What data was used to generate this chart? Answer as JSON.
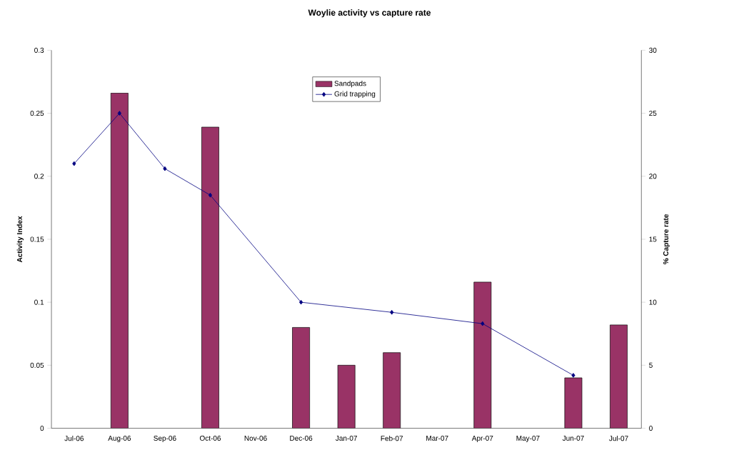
{
  "chart_data": {
    "type": "bar",
    "title": "Woylie activity vs capture rate",
    "ylabel": "Activity Index",
    "y2label": "% Capture rate",
    "categories": [
      "Jul-06",
      "Aug-06",
      "Sep-06",
      "Oct-06",
      "Nov-06",
      "Dec-06",
      "Jan-07",
      "Feb-07",
      "Mar-07",
      "Apr-07",
      "May-07",
      "Jun-07",
      "Jul-07"
    ],
    "series": [
      {
        "name": "Sandpads",
        "color": "#993366",
        "values": [
          null,
          0.266,
          null,
          0.239,
          null,
          0.08,
          0.05,
          0.06,
          null,
          0.116,
          null,
          0.04,
          0.082
        ]
      },
      {
        "name": "Grid trapping",
        "type": "line",
        "axis": "y2",
        "color": "#000080",
        "marker": "diamond",
        "line_style": "solid",
        "values": [
          21,
          25,
          20.6,
          18.5,
          null,
          10,
          null,
          9.2,
          null,
          8.3,
          null,
          4.2,
          null
        ]
      }
    ],
    "ylim": [
      0,
      0.3
    ],
    "yticks": [
      0,
      0.05,
      0.1,
      0.15,
      0.2,
      0.25,
      0.3
    ],
    "y2lim": [
      0,
      30
    ],
    "y2ticks": [
      0,
      5,
      10,
      15,
      20,
      25,
      30
    ],
    "legend": "top",
    "grid": false
  }
}
